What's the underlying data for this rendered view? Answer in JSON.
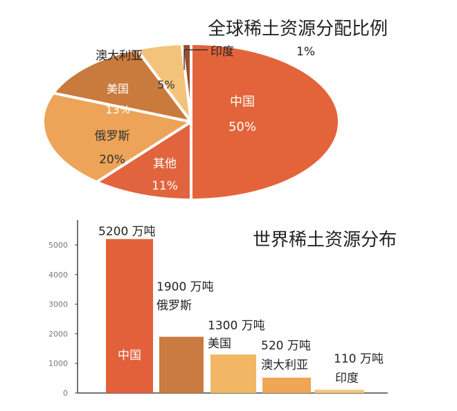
{
  "chart_data": [
    {
      "type": "pie",
      "title": "全球稀土资源分配比例",
      "slices": [
        {
          "name": "中国",
          "value": 50,
          "label": "50%",
          "color": "#E3643B"
        },
        {
          "name": "其他",
          "value": 11,
          "label": "11%",
          "color": "#E1643F"
        },
        {
          "name": "俄罗斯",
          "value": 20,
          "label": "20%",
          "color": "#EDA458"
        },
        {
          "name": "美国",
          "value": 13,
          "label": "13%",
          "color": "#C97B3E"
        },
        {
          "name": "澳大利亚",
          "value": 5,
          "label": "5%",
          "color": "#F3C37B"
        },
        {
          "name": "印度",
          "value": 1,
          "label": "1%",
          "color": "#9A4F2F"
        }
      ]
    },
    {
      "type": "bar",
      "title": "世界稀土资源分布",
      "ylim": [
        0,
        6000
      ],
      "yticks": [
        "0",
        "1000",
        "2000",
        "3000",
        "4000",
        "5000"
      ],
      "unit": "万吨",
      "categories": [
        "中国",
        "俄罗斯",
        "美国",
        "澳大利亚",
        "印度"
      ],
      "values": [
        5200,
        1900,
        1300,
        520,
        110
      ],
      "value_labels": [
        "5200 万吨",
        "1900 万吨",
        "1300 万吨",
        "520 万吨",
        "110 万吨"
      ],
      "colors": [
        "#E2603A",
        "#C97B40",
        "#F1B764",
        "#EFA654",
        "#F3C77E"
      ]
    }
  ]
}
